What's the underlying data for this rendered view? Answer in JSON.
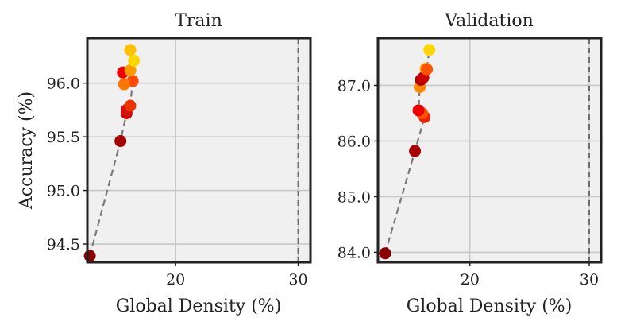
{
  "chart_data": [
    {
      "type": "scatter",
      "title": "Train",
      "xlabel": "Global Density (%)",
      "ylabel": "Accuracy (%)",
      "xlim": [
        12.8,
        31.0
      ],
      "ylim": [
        94.33,
        96.42
      ],
      "xticks": [
        20,
        30
      ],
      "xtick_labels": [
        "20",
        "30"
      ],
      "yticks": [
        94.5,
        95.0,
        95.5,
        96.0
      ],
      "ytick_labels": [
        "94.5",
        "95.0",
        "95.5",
        "96.0"
      ],
      "grid": true,
      "reference_vline_x": 30,
      "connector_line": "dashed gray",
      "points": [
        {
          "x": 13.0,
          "y": 94.39,
          "color": "#8b0000"
        },
        {
          "x": 15.5,
          "y": 95.46,
          "color": "#a80000"
        },
        {
          "x": 16.0,
          "y": 95.72,
          "color": "#cc0000"
        },
        {
          "x": 16.0,
          "y": 95.75,
          "color": "#d41010"
        },
        {
          "x": 16.3,
          "y": 95.79,
          "color": "#ee3300"
        },
        {
          "x": 16.5,
          "y": 96.02,
          "color": "#ff4a00"
        },
        {
          "x": 15.8,
          "y": 95.99,
          "color": "#ff7700"
        },
        {
          "x": 15.7,
          "y": 96.1,
          "color": "#ee0000"
        },
        {
          "x": 16.3,
          "y": 96.12,
          "color": "#ff9900"
        },
        {
          "x": 16.6,
          "y": 96.21,
          "color": "#ffd700"
        },
        {
          "x": 16.3,
          "y": 96.31,
          "color": "#ffc000"
        }
      ]
    },
    {
      "type": "scatter",
      "title": "Validation",
      "xlabel": "Global Density (%)",
      "ylabel": "",
      "xlim": [
        12.3,
        31.0
      ],
      "ylim": [
        83.82,
        87.85
      ],
      "xticks": [
        20,
        30
      ],
      "xtick_labels": [
        "20",
        "30"
      ],
      "yticks": [
        84.0,
        85.0,
        86.0,
        87.0
      ],
      "ytick_labels": [
        "84.0",
        "85.0",
        "86.0",
        "87.0"
      ],
      "grid": true,
      "reference_vline_x": 30,
      "connector_line": "dashed gray",
      "points": [
        {
          "x": 12.9,
          "y": 83.98,
          "color": "#8b0000"
        },
        {
          "x": 15.4,
          "y": 85.82,
          "color": "#a80000"
        },
        {
          "x": 16.2,
          "y": 86.43,
          "color": "#ee2200"
        },
        {
          "x": 16.0,
          "y": 86.5,
          "color": "#ff5500"
        },
        {
          "x": 15.7,
          "y": 86.55,
          "color": "#ee0000"
        },
        {
          "x": 15.8,
          "y": 86.97,
          "color": "#ff8800"
        },
        {
          "x": 15.9,
          "y": 87.1,
          "color": "#aa0000"
        },
        {
          "x": 16.1,
          "y": 87.14,
          "color": "#cc0000"
        },
        {
          "x": 16.3,
          "y": 87.3,
          "color": "#ffaa00"
        },
        {
          "x": 16.4,
          "y": 87.29,
          "color": "#ff5500"
        },
        {
          "x": 16.6,
          "y": 87.64,
          "color": "#ffd700"
        }
      ]
    }
  ]
}
